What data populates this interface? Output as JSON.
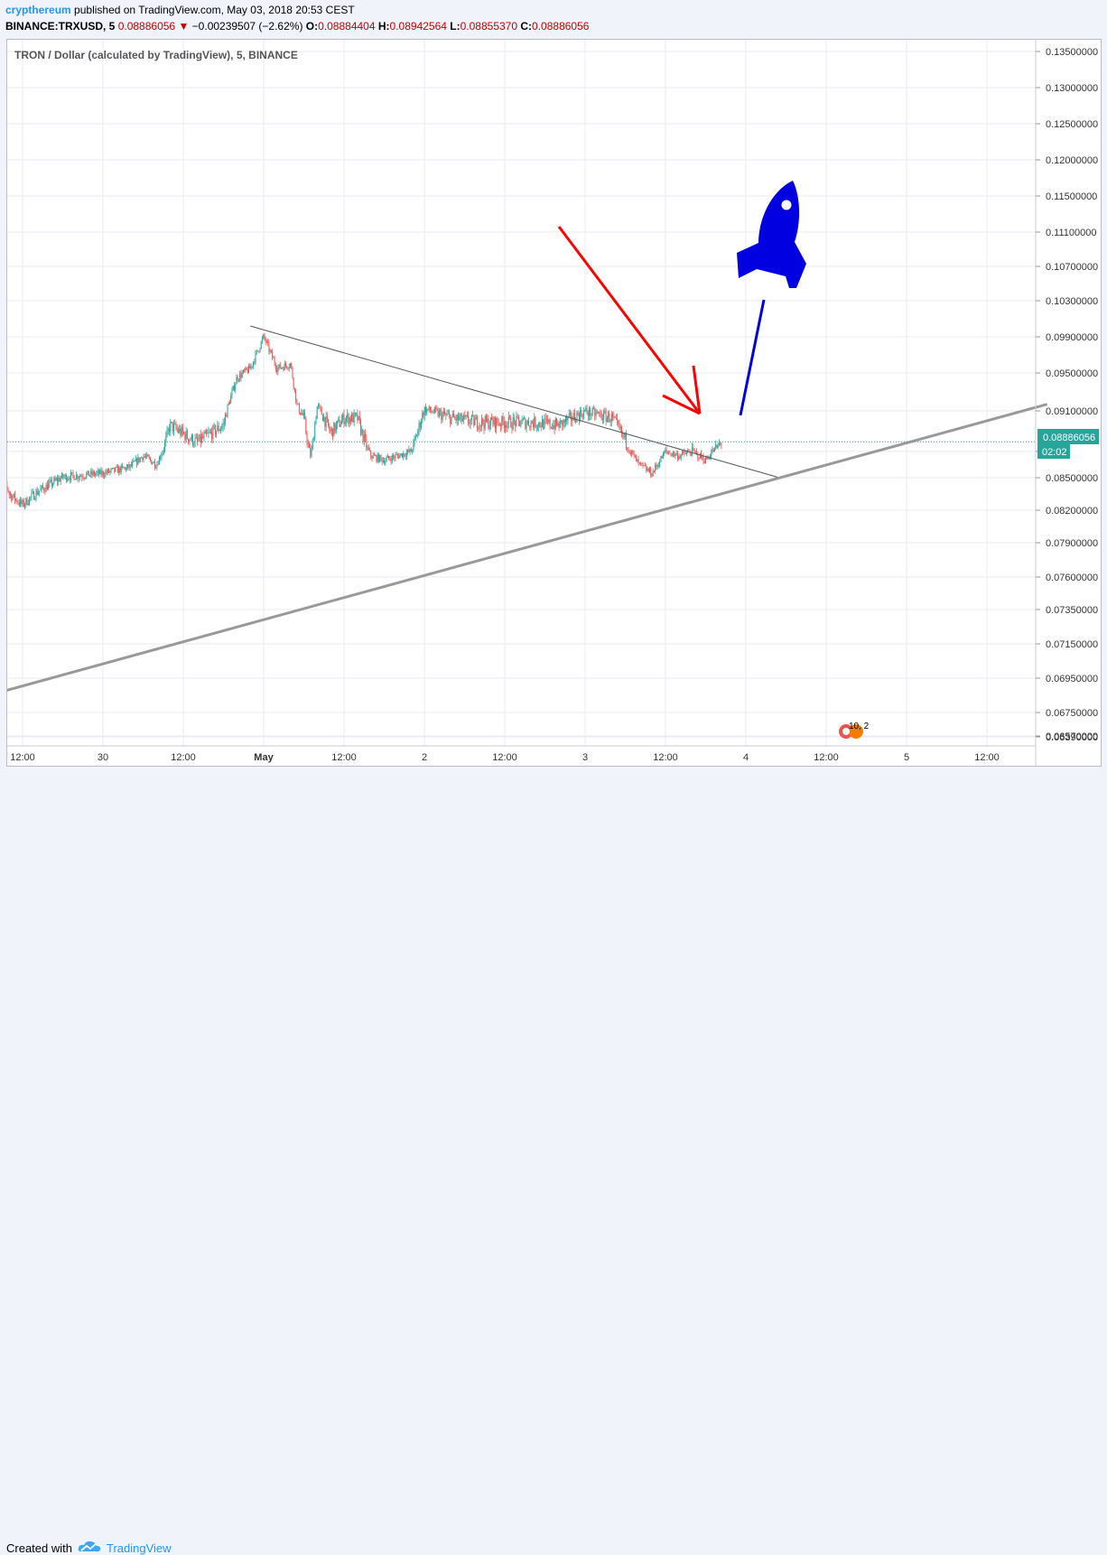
{
  "header": {
    "author": "crypthereum",
    "published": "published on TradingView.com, May 03, 2018 20:53 CEST",
    "symbol": "BINANCE:TRXUSD, 5",
    "last": "0.08886056",
    "change": "−0.00239507 (−2.62%)",
    "o_label": "O:",
    "o_value": "0.08884404",
    "h_label": "H:",
    "h_value": "0.08942564",
    "l_label": "L:",
    "l_value": "0.08855370",
    "c_label": "C:",
    "c_value": "0.08886056"
  },
  "legend": {
    "title": "TRON / Dollar (calculated by TradingView), 5, BINANCE"
  },
  "footer": {
    "created": "Created with",
    "brand": "TradingView"
  },
  "colors": {
    "up": "#26a69a",
    "down": "#ef5350",
    "price_label": "#26a69a",
    "arrow": "#ff0000",
    "rocket": "#0000e0",
    "line": "#2196f3"
  },
  "events": {
    "label": "10, 2"
  },
  "chart_data": {
    "type": "candlestick",
    "title": "TRON / Dollar (calculated by TradingView), 5, BINANCE",
    "y_ticks": [
      0.135,
      0.13,
      0.125,
      0.12,
      0.115,
      0.111,
      0.107,
      0.103,
      0.099,
      0.095,
      0.091,
      0.088,
      0.085,
      0.082,
      0.079,
      0.076,
      0.0735,
      0.0715,
      0.0695,
      0.0675,
      0.0657,
      0.0639
    ],
    "y_tick_labels": [
      "0.13500000",
      "0.13000000",
      "0.12500000",
      "0.12000000",
      "0.11500000",
      "0.11100000",
      "0.10700000",
      "0.10300000",
      "0.09900000",
      "0.09500000",
      "0.09100000",
      "0.088",
      "0.08500000",
      "0.08200000",
      "0.07900000",
      "0.07600000",
      "0.07350000",
      "0.07150000",
      "0.06950000",
      "0.06750000",
      "0.06570000",
      "0.06390000"
    ],
    "x_ticks": [
      "12:00",
      "30",
      "12:00",
      "May",
      "12:00",
      "2",
      "12:00",
      "3",
      "12:00",
      "4",
      "12:00",
      "5",
      "12:00"
    ],
    "last_price": 0.08886056,
    "last_price_label": "0.08886056",
    "countdown": "02:02",
    "anchors": [
      [
        "2018-04-29 08:00",
        0.0878
      ],
      [
        "2018-04-29 10:00",
        0.0835
      ],
      [
        "2018-04-29 12:00",
        0.0825
      ],
      [
        "2018-04-29 14:00",
        0.0836
      ],
      [
        "2018-04-29 18:00",
        0.0851
      ],
      [
        "2018-04-30 00:00",
        0.0855
      ],
      [
        "2018-04-30 04:00",
        0.0862
      ],
      [
        "2018-04-30 06:00",
        0.0875
      ],
      [
        "2018-04-30 08:00",
        0.0865
      ],
      [
        "2018-04-30 10:00",
        0.09
      ],
      [
        "2018-04-30 14:00",
        0.0888
      ],
      [
        "2018-04-30 18:00",
        0.09
      ],
      [
        "2018-04-30 20:00",
        0.0945
      ],
      [
        "2018-04-30 22:00",
        0.0955
      ],
      [
        "2018-05-01 00:00",
        0.099
      ],
      [
        "2018-05-01 02:00",
        0.0955
      ],
      [
        "2018-05-01 04:00",
        0.096
      ],
      [
        "2018-05-01 05:00",
        0.0915
      ],
      [
        "2018-05-01 06:00",
        0.0905
      ],
      [
        "2018-05-01 07:00",
        0.0875
      ],
      [
        "2018-05-01 08:00",
        0.0915
      ],
      [
        "2018-05-01 10:00",
        0.0895
      ],
      [
        "2018-05-01 12:00",
        0.0905
      ],
      [
        "2018-05-01 14:00",
        0.0905
      ],
      [
        "2018-05-01 16:00",
        0.0875
      ],
      [
        "2018-05-01 18:00",
        0.087
      ],
      [
        "2018-05-01 22:00",
        0.088
      ],
      [
        "2018-05-02 00:00",
        0.0912
      ],
      [
        "2018-05-02 04:00",
        0.0905
      ],
      [
        "2018-05-02 08:00",
        0.0902
      ],
      [
        "2018-05-02 12:00",
        0.0902
      ],
      [
        "2018-05-02 16:00",
        0.0902
      ],
      [
        "2018-05-02 20:00",
        0.09
      ],
      [
        "2018-05-03 00:00",
        0.091
      ],
      [
        "2018-05-03 04:00",
        0.0905
      ],
      [
        "2018-05-03 06:00",
        0.089
      ],
      [
        "2018-05-03 08:00",
        0.0865
      ],
      [
        "2018-05-03 10:00",
        0.0855
      ],
      [
        "2018-05-03 12:00",
        0.088
      ],
      [
        "2018-05-03 14:00",
        0.0875
      ],
      [
        "2018-05-03 16:00",
        0.088
      ],
      [
        "2018-05-03 18:00",
        0.087
      ],
      [
        "2018-05-03 19:00",
        0.088
      ],
      [
        "2018-05-03 20:30",
        0.0889
      ]
    ],
    "trendlines": [
      {
        "name": "resistance",
        "from": [
          "2018-04-30 22:00",
          0.1002
        ],
        "to": [
          "2018-05-04 05:00",
          0.085
        ]
      },
      {
        "name": "support",
        "from": [
          "2018-04-29 06:00",
          0.0684
        ],
        "to": [
          "2018-05-05 21:00",
          0.0917
        ]
      }
    ]
  }
}
